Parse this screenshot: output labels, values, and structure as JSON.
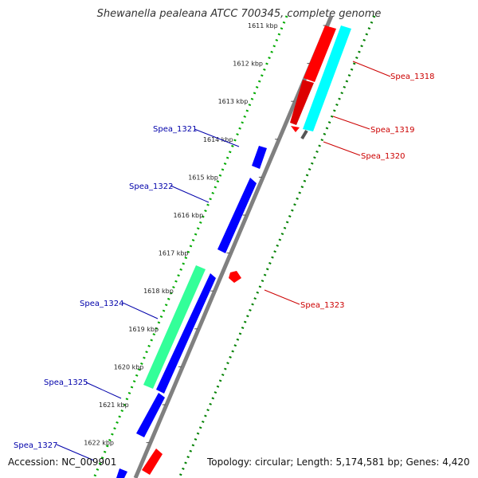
{
  "title": "Shewanella pealeana ATCC 700345, complete genome",
  "footer": {
    "accession": "Accession: NC_009901",
    "summary": "Topology: circular; Length: 5,174,581 bp; Genes: 4,420"
  },
  "colors": {
    "backbone": "#808080",
    "forward_cds": "#ff0000",
    "reverse_cds": "#0000ff",
    "rna_cyan": "#00ffff",
    "rna_green": "#33ff99",
    "dots_outer": "#00aa00",
    "dots_inner": "#008000",
    "label_forward": "#cc0000",
    "label_reverse": "#0000aa"
  },
  "ticks": [
    {
      "label": "1611 kbp"
    },
    {
      "label": "1612 kbp"
    },
    {
      "label": "1613 kbp"
    },
    {
      "label": "1614 kbp"
    },
    {
      "label": "1615 kbp"
    },
    {
      "label": "1616 kbp"
    },
    {
      "label": "1617 kbp"
    },
    {
      "label": "1618 kbp"
    },
    {
      "label": "1619 kbp"
    },
    {
      "label": "1620 kbp"
    },
    {
      "label": "1621 kbp"
    },
    {
      "label": "1622 kbp"
    }
  ],
  "gene_labels": [
    {
      "text": "Spea_1318",
      "strand": "forward"
    },
    {
      "text": "Spea_1319",
      "strand": "forward"
    },
    {
      "text": "Spea_1320",
      "strand": "forward"
    },
    {
      "text": "Spea_1321",
      "strand": "reverse"
    },
    {
      "text": "Spea_1322",
      "strand": "reverse"
    },
    {
      "text": "Spea_1323",
      "strand": "forward"
    },
    {
      "text": "Spea_1324",
      "strand": "reverse"
    },
    {
      "text": "Spea_1325",
      "strand": "reverse"
    },
    {
      "text": "Spea_1327",
      "strand": "reverse"
    }
  ]
}
